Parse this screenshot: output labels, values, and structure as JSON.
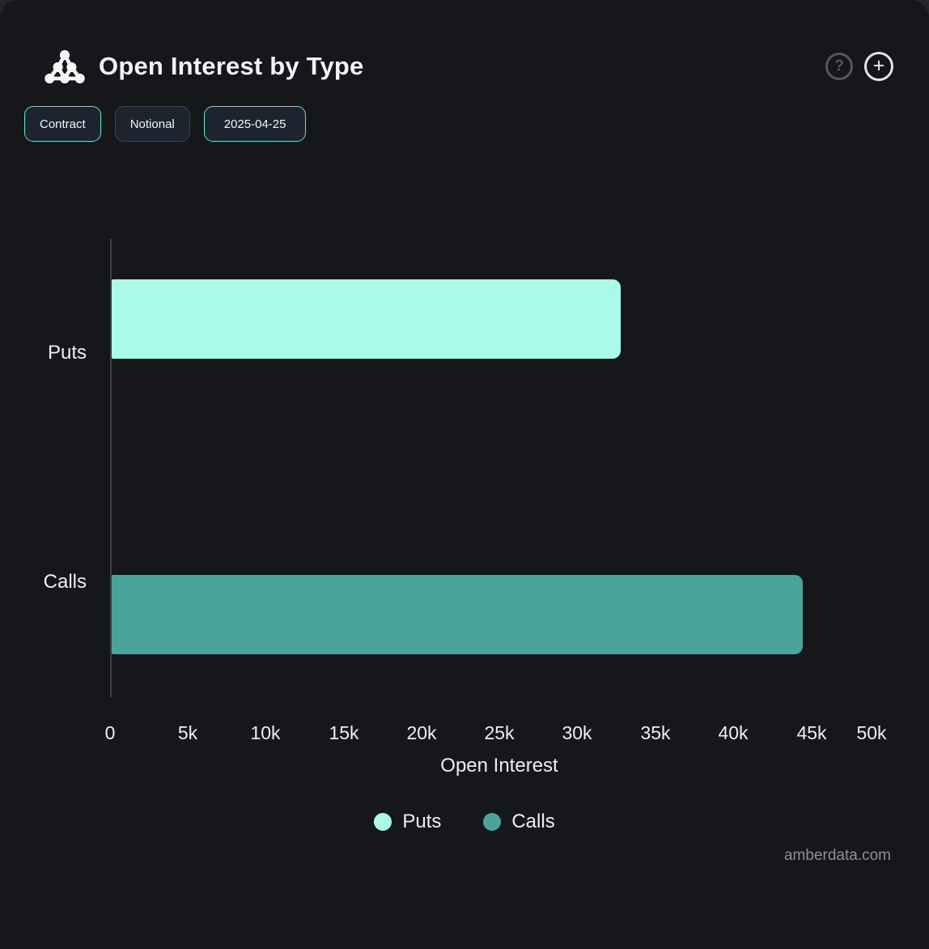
{
  "header": {
    "title": "Open Interest by Type",
    "icon": "amberdata-cluster-icon",
    "help_label": "?",
    "add_label": "+"
  },
  "controls": {
    "buttons": [
      {
        "label": "Contract",
        "active": true
      },
      {
        "label": "Notional",
        "active": false
      },
      {
        "label": "2025-04-25",
        "active": true
      }
    ]
  },
  "chart_data": {
    "type": "bar",
    "orientation": "horizontal",
    "title": "Open Interest by Type",
    "categories": [
      "Puts",
      "Calls"
    ],
    "values": [
      32700,
      44400
    ],
    "colors": [
      "#aafaea",
      "#4aa49a"
    ],
    "xlabel": "Open Interest",
    "ylabel": "",
    "xlim": [
      0,
      50000
    ],
    "x_ticks": [
      0,
      5000,
      10000,
      15000,
      20000,
      25000,
      30000,
      35000,
      40000,
      45000,
      50000
    ],
    "tick_labels": [
      "0",
      "5k",
      "10k",
      "15k",
      "20k",
      "25k",
      "30k",
      "35k",
      "40k",
      "45k",
      "50k"
    ],
    "grid": false,
    "legend_position": "bottom"
  },
  "legend": {
    "items": [
      {
        "label": "Puts",
        "color": "#aafaea"
      },
      {
        "label": "Calls",
        "color": "#4aa49a"
      }
    ]
  },
  "watermark": "amberdata.com",
  "theme": {
    "background": "#16171a",
    "accent": "#5de6cb",
    "text": "#edeff0"
  }
}
